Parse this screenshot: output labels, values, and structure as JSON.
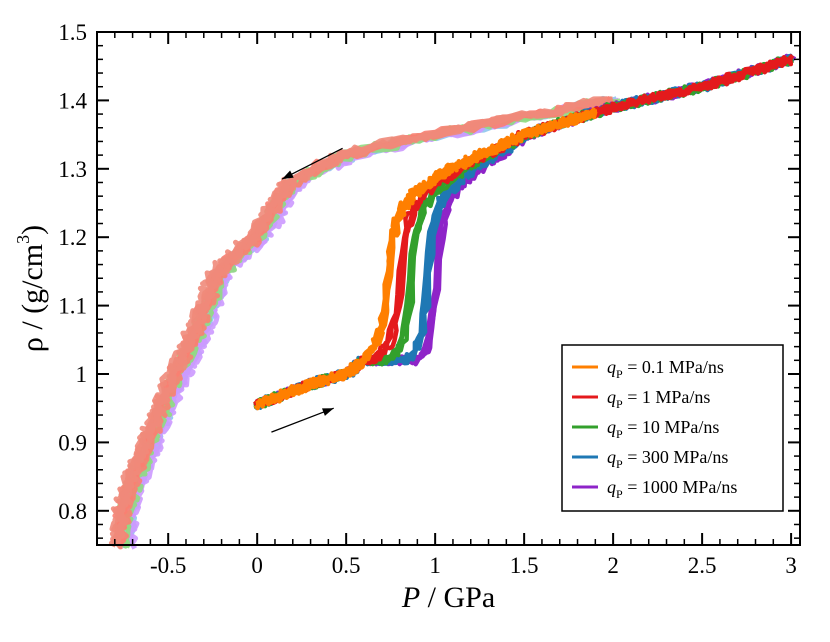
{
  "chart_data": {
    "type": "line",
    "xlabel_symbol": "P",
    "xlabel_unit": " / GPa",
    "ylabel": "ρ / (g/cm",
    "ylabel_sup": "3",
    "ylabel_close": ")",
    "xlim": [
      -0.9,
      3.05
    ],
    "ylim": [
      0.75,
      1.5
    ],
    "x_ticks": [
      -0.5,
      0,
      0.5,
      1,
      1.5,
      2,
      2.5,
      3
    ],
    "x_tick_labels": [
      "-0.5",
      "0",
      "0.5",
      "1",
      "1.5",
      "2",
      "2.5",
      "3"
    ],
    "y_ticks": [
      0.8,
      0.9,
      1.0,
      1.1,
      1.2,
      1.3,
      1.4,
      1.5
    ],
    "y_tick_labels": [
      "0.8",
      "0.9",
      "1",
      "1.1",
      "1.2",
      "1.3",
      "1.4",
      "1.5"
    ],
    "annotations": [
      {
        "type": "arrow",
        "direction": "decompression",
        "from": [
          0.48,
          1.33
        ],
        "to": [
          0.14,
          1.285
        ]
      },
      {
        "type": "arrow",
        "direction": "compression",
        "from": [
          0.08,
          0.915
        ],
        "to": [
          0.43,
          0.95
        ]
      }
    ],
    "compression_curve": {
      "x": [
        0.0,
        0.3,
        0.5,
        0.65,
        0.7,
        0.74,
        0.78,
        0.83,
        0.9,
        1.1,
        1.5,
        2.0,
        2.5,
        3.0
      ],
      "y": [
        0.955,
        0.985,
        1.0,
        1.03,
        1.05,
        1.1,
        1.2,
        1.24,
        1.265,
        1.3,
        1.35,
        1.39,
        1.42,
        1.46
      ]
    },
    "decompression_curve": {
      "x": [
        2.0,
        1.5,
        1.0,
        0.5,
        0.2,
        0.0,
        -0.2,
        -0.35,
        -0.5,
        -0.6,
        -0.68,
        -0.74,
        -0.76
      ],
      "y": [
        1.4,
        1.375,
        1.35,
        1.32,
        1.28,
        1.2,
        1.15,
        1.05,
        0.97,
        0.9,
        0.85,
        0.8,
        0.75
      ]
    },
    "series": [
      {
        "name": "0.1 MPa/ns",
        "q_value": "0.1",
        "color": "#ff7f00",
        "transition_p": 0.76,
        "comp_end": 1.9,
        "decomp_color": "#f08a7a"
      },
      {
        "name": "1 MPa/ns",
        "q_value": "1",
        "color": "#e41a1c",
        "transition_p": 0.83,
        "comp_end": 3.0,
        "decomp_color": "#fa8072"
      },
      {
        "name": "10 MPa/ns",
        "q_value": "10",
        "color": "#33a02c",
        "transition_p": 0.9,
        "comp_end": 3.0,
        "decomp_color": "#8fdc7f"
      },
      {
        "name": "300 MPa/ns",
        "q_value": "300",
        "color": "#1f78b4",
        "transition_p": 1.03,
        "comp_end": 3.0,
        "decomp_color": "#8ec5ee"
      },
      {
        "name": "1000 MPa/ns",
        "q_value": "1000",
        "color": "#8e24c8",
        "transition_p": 1.12,
        "comp_end": 3.0,
        "decomp_color": "#cc99ff"
      }
    ],
    "legend": {
      "placement": "bottom-right",
      "q_symbol": "q",
      "q_subscript": "P",
      "entries": [
        "0.1 MPa/ns",
        "1 MPa/ns",
        "10 MPa/ns",
        "300 MPa/ns",
        "1000 MPa/ns"
      ]
    }
  }
}
